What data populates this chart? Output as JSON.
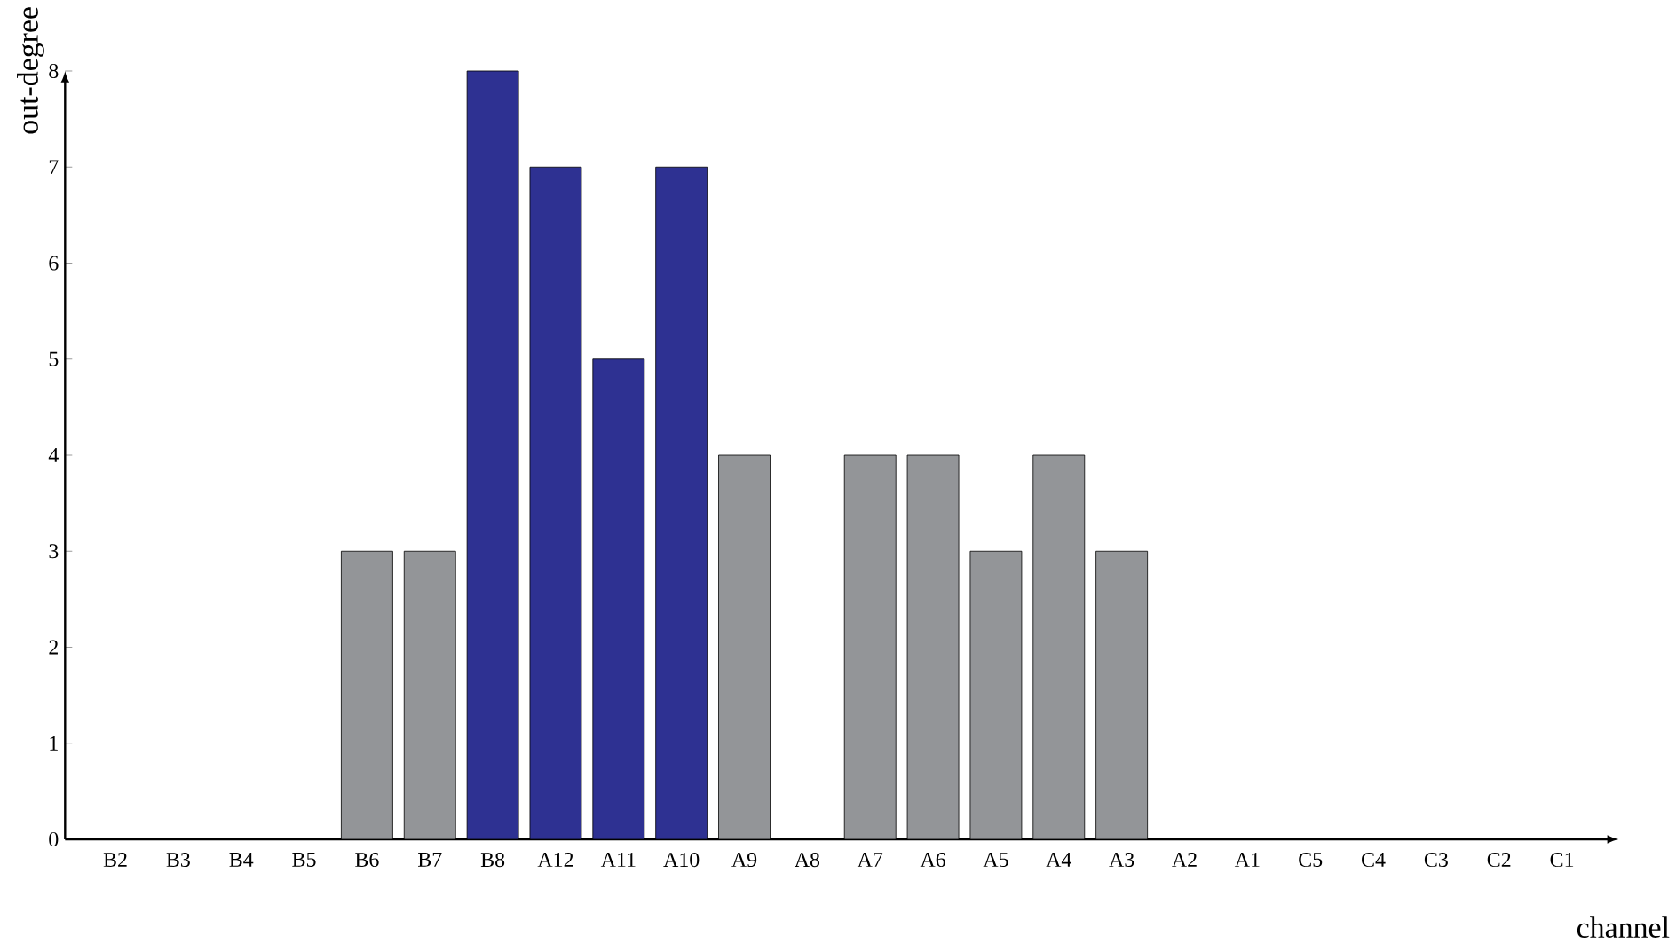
{
  "chart_data": {
    "type": "bar",
    "xlabel": "channel",
    "ylabel": "out-degree",
    "categories": [
      "B2",
      "B3",
      "B4",
      "B5",
      "B6",
      "B7",
      "B8",
      "A12",
      "A11",
      "A10",
      "A9",
      "A8",
      "A7",
      "A6",
      "A5",
      "A4",
      "A3",
      "A2",
      "A1",
      "C5",
      "C4",
      "C3",
      "C2",
      "C1"
    ],
    "values": [
      0,
      0,
      0,
      0,
      3,
      3,
      8,
      7,
      5,
      7,
      4,
      0,
      4,
      4,
      3,
      4,
      3,
      0,
      0,
      0,
      0,
      0,
      0,
      0
    ],
    "colors": [
      "#939598",
      "#939598",
      "#939598",
      "#939598",
      "#939598",
      "#939598",
      "#2e3192",
      "#2e3192",
      "#2e3192",
      "#2e3192",
      "#939598",
      "#939598",
      "#939598",
      "#939598",
      "#939598",
      "#939598",
      "#939598",
      "#939598",
      "#939598",
      "#939598",
      "#939598",
      "#939598",
      "#939598",
      "#939598"
    ],
    "ylim": [
      0,
      8
    ],
    "yticks": [
      0,
      1,
      2,
      3,
      4,
      5,
      6,
      7,
      8
    ],
    "grid": false
  }
}
